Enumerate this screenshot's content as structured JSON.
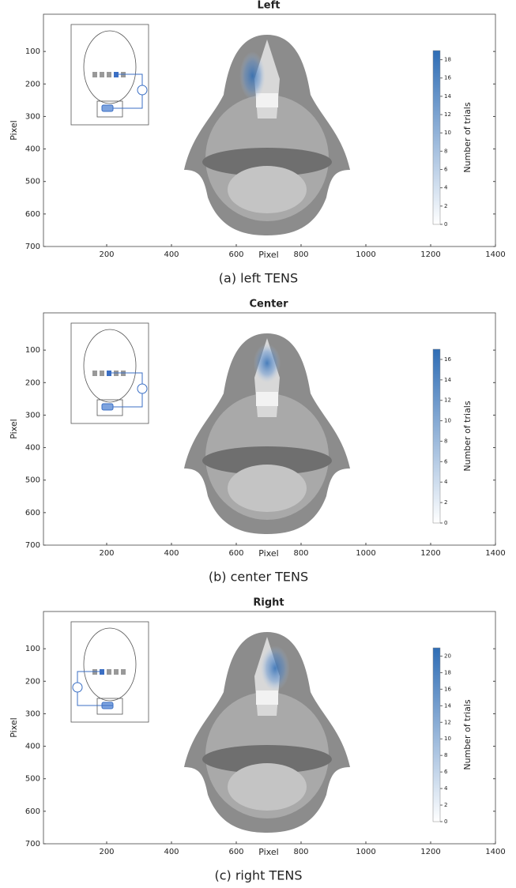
{
  "chart_data": [
    {
      "type": "image",
      "title": "Left",
      "xlabel": "Pixel",
      "ylabel": "Pixel",
      "caption": "(a) left TENS",
      "xlim": [
        0,
        1400
      ],
      "xticks": [
        200,
        400,
        600,
        800,
        1000,
        1200,
        1400
      ],
      "ylim": [
        0,
        700
      ],
      "yticks": [
        100,
        200,
        300,
        400,
        500,
        600,
        700
      ],
      "y_reversed": true,
      "colorbar_label": "Number of trials",
      "clim": [
        0,
        19
      ],
      "cticks": [
        0,
        2,
        4,
        6,
        8,
        10,
        12,
        14,
        16,
        18
      ],
      "color": "#2f6db5"
    },
    {
      "type": "image",
      "title": "Center",
      "xlabel": "Pixel",
      "ylabel": "Pixel",
      "caption": "(b) center TENS",
      "xlim": [
        0,
        1400
      ],
      "xticks": [
        200,
        400,
        600,
        800,
        1000,
        1200,
        1400
      ],
      "ylim": [
        0,
        700
      ],
      "yticks": [
        100,
        200,
        300,
        400,
        500,
        600,
        700
      ],
      "y_reversed": true,
      "colorbar_label": "Number of trials",
      "clim": [
        0,
        17
      ],
      "cticks": [
        0,
        2,
        4,
        6,
        8,
        10,
        12,
        14,
        16
      ],
      "color": "#2f6db5"
    },
    {
      "type": "image",
      "title": "Right",
      "xlabel": "Pixel",
      "ylabel": "Pixel",
      "caption": "(c) right TENS",
      "xlim": [
        0,
        1400
      ],
      "xticks": [
        200,
        400,
        600,
        800,
        1000,
        1200,
        1400
      ],
      "ylim": [
        0,
        700
      ],
      "yticks": [
        100,
        200,
        300,
        400,
        500,
        600,
        700
      ],
      "y_reversed": true,
      "colorbar_label": "Number of trials",
      "clim": [
        0,
        21
      ],
      "cticks": [
        0,
        2,
        4,
        6,
        8,
        10,
        12,
        14,
        16,
        18,
        20
      ],
      "color": "#2f6db5"
    }
  ]
}
